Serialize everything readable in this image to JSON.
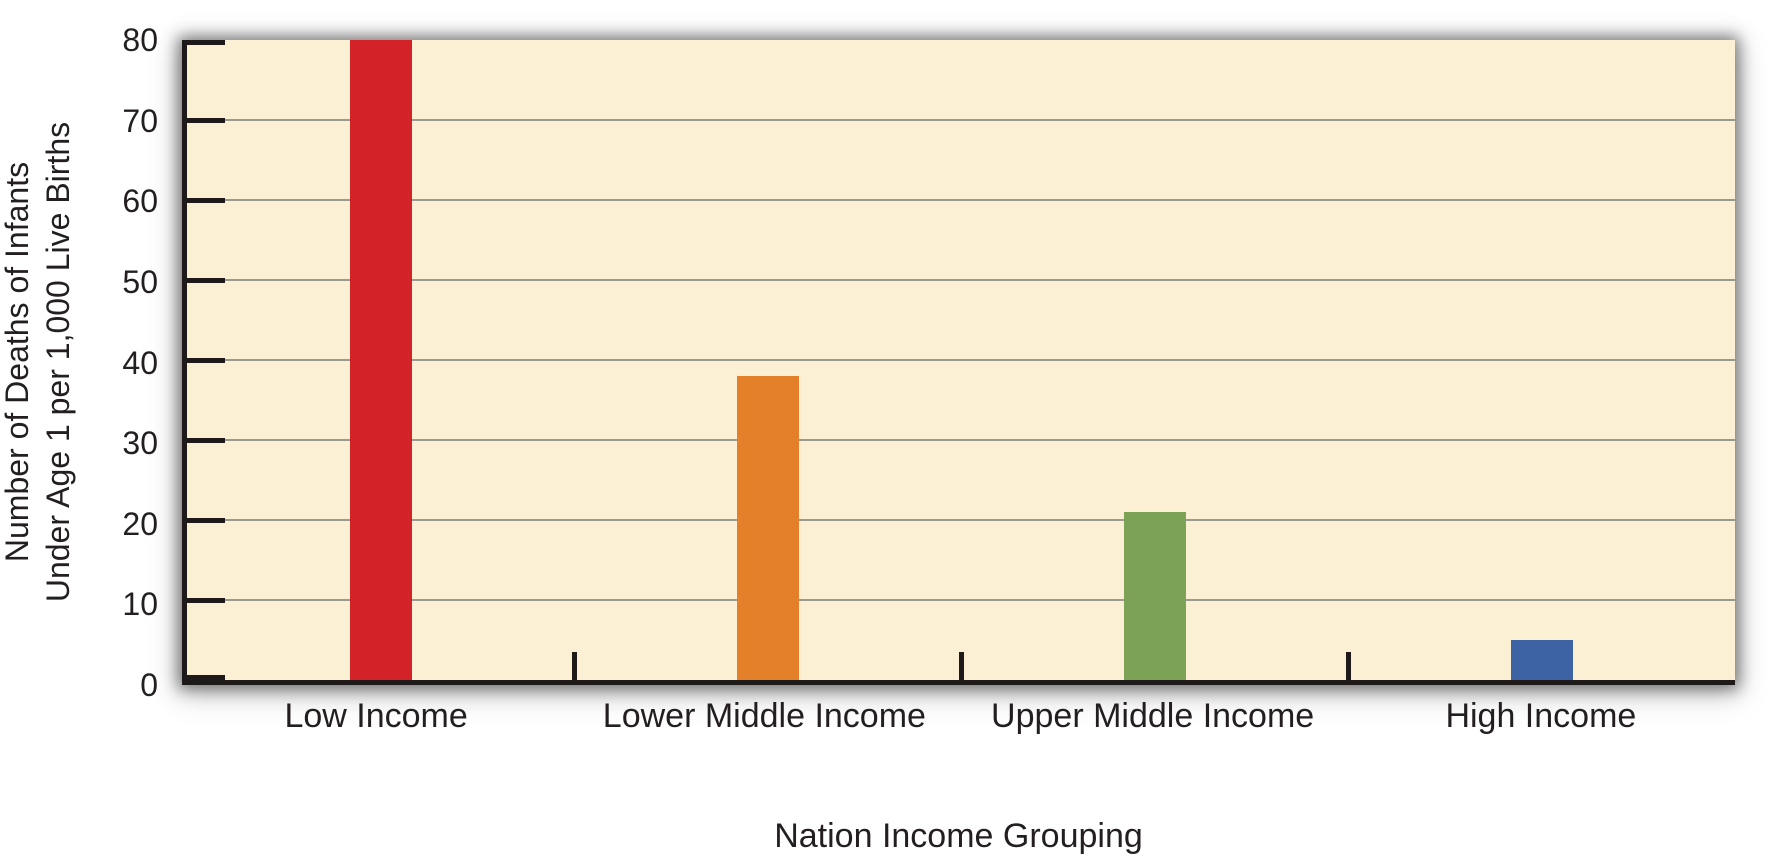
{
  "chart_data": {
    "type": "bar",
    "title": "",
    "xlabel": "Nation Income Grouping",
    "ylabel": "Number of Deaths of Infants Under Age 1 per 1,000 Live Births",
    "ylabel_lines": [
      "Number of Deaths of Infants",
      "Under Age 1 per 1,000 Live Births"
    ],
    "categories": [
      "Low Income",
      "Lower Middle Income",
      "Upper Middle Income",
      "High Income"
    ],
    "values": [
      80,
      38,
      21,
      5
    ],
    "bar_colors": [
      "#d42229",
      "#e5802a",
      "#7ca355",
      "#3d63a4"
    ],
    "ylim": [
      0,
      80
    ],
    "ytick_step": 10,
    "ytick_labels": [
      "0",
      "10",
      "20",
      "30",
      "40",
      "50",
      "60",
      "70",
      "80"
    ],
    "grid": "horizontal",
    "legend": "none",
    "styles": {
      "plot_background": "#fbf0d3",
      "gridline_color": "#9a9a8e",
      "axis_color": "#1e1a1a",
      "text_color": "#231f20",
      "page_background": "#ffffff"
    }
  }
}
